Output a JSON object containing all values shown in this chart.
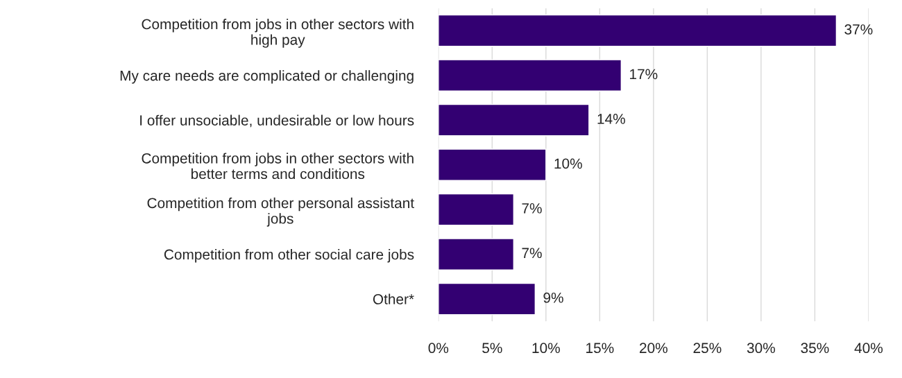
{
  "chart_data": {
    "type": "bar",
    "orientation": "horizontal",
    "categories": [
      "Competition from jobs in other sectors with\nhigh pay",
      "My care needs are complicated or challenging",
      "I offer unsociable, undesirable or low hours",
      "Competition from jobs in other sectors with\nbetter terms and conditions",
      "Competition from other personal assistant\njobs",
      "Competition from other social care jobs",
      "Other*"
    ],
    "values": [
      37,
      17,
      14,
      10,
      7,
      7,
      9
    ],
    "value_labels": [
      "37%",
      "17%",
      "14%",
      "10%",
      "7%",
      "7%",
      "9%"
    ],
    "color": "#330072",
    "xlim": [
      0,
      40
    ],
    "xticks": [
      {
        "value": 0,
        "label": "0%"
      },
      {
        "value": 5,
        "label": "5%"
      },
      {
        "value": 10,
        "label": "10%"
      },
      {
        "value": 15,
        "label": "15%"
      },
      {
        "value": 20,
        "label": "20%"
      },
      {
        "value": 25,
        "label": "25%"
      },
      {
        "value": 30,
        "label": "30%"
      },
      {
        "value": 35,
        "label": "35%"
      },
      {
        "value": 40,
        "label": "40%"
      }
    ],
    "grid": "x"
  }
}
